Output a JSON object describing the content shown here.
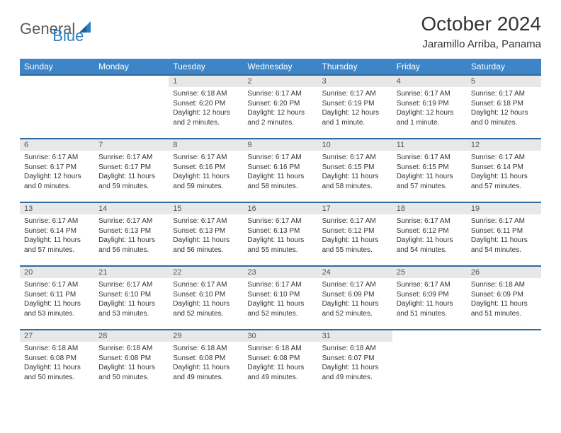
{
  "logo": {
    "text1": "General",
    "text2": "Blue"
  },
  "title": "October 2024",
  "location": "Jaramillo Arriba, Panama",
  "header_bg": "#3d85c6",
  "header_fg": "#ffffff",
  "daynum_bg": "#e8e8e8",
  "border_color": "#2f6aa0",
  "weekdays": [
    "Sunday",
    "Monday",
    "Tuesday",
    "Wednesday",
    "Thursday",
    "Friday",
    "Saturday"
  ],
  "weeks": [
    [
      {
        "empty": true
      },
      {
        "empty": true
      },
      {
        "n": "1",
        "sunrise": "Sunrise: 6:18 AM",
        "sunset": "Sunset: 6:20 PM",
        "daylight": "Daylight: 12 hours and 2 minutes."
      },
      {
        "n": "2",
        "sunrise": "Sunrise: 6:17 AM",
        "sunset": "Sunset: 6:20 PM",
        "daylight": "Daylight: 12 hours and 2 minutes."
      },
      {
        "n": "3",
        "sunrise": "Sunrise: 6:17 AM",
        "sunset": "Sunset: 6:19 PM",
        "daylight": "Daylight: 12 hours and 1 minute."
      },
      {
        "n": "4",
        "sunrise": "Sunrise: 6:17 AM",
        "sunset": "Sunset: 6:19 PM",
        "daylight": "Daylight: 12 hours and 1 minute."
      },
      {
        "n": "5",
        "sunrise": "Sunrise: 6:17 AM",
        "sunset": "Sunset: 6:18 PM",
        "daylight": "Daylight: 12 hours and 0 minutes."
      }
    ],
    [
      {
        "n": "6",
        "sunrise": "Sunrise: 6:17 AM",
        "sunset": "Sunset: 6:17 PM",
        "daylight": "Daylight: 12 hours and 0 minutes."
      },
      {
        "n": "7",
        "sunrise": "Sunrise: 6:17 AM",
        "sunset": "Sunset: 6:17 PM",
        "daylight": "Daylight: 11 hours and 59 minutes."
      },
      {
        "n": "8",
        "sunrise": "Sunrise: 6:17 AM",
        "sunset": "Sunset: 6:16 PM",
        "daylight": "Daylight: 11 hours and 59 minutes."
      },
      {
        "n": "9",
        "sunrise": "Sunrise: 6:17 AM",
        "sunset": "Sunset: 6:16 PM",
        "daylight": "Daylight: 11 hours and 58 minutes."
      },
      {
        "n": "10",
        "sunrise": "Sunrise: 6:17 AM",
        "sunset": "Sunset: 6:15 PM",
        "daylight": "Daylight: 11 hours and 58 minutes."
      },
      {
        "n": "11",
        "sunrise": "Sunrise: 6:17 AM",
        "sunset": "Sunset: 6:15 PM",
        "daylight": "Daylight: 11 hours and 57 minutes."
      },
      {
        "n": "12",
        "sunrise": "Sunrise: 6:17 AM",
        "sunset": "Sunset: 6:14 PM",
        "daylight": "Daylight: 11 hours and 57 minutes."
      }
    ],
    [
      {
        "n": "13",
        "sunrise": "Sunrise: 6:17 AM",
        "sunset": "Sunset: 6:14 PM",
        "daylight": "Daylight: 11 hours and 57 minutes."
      },
      {
        "n": "14",
        "sunrise": "Sunrise: 6:17 AM",
        "sunset": "Sunset: 6:13 PM",
        "daylight": "Daylight: 11 hours and 56 minutes."
      },
      {
        "n": "15",
        "sunrise": "Sunrise: 6:17 AM",
        "sunset": "Sunset: 6:13 PM",
        "daylight": "Daylight: 11 hours and 56 minutes."
      },
      {
        "n": "16",
        "sunrise": "Sunrise: 6:17 AM",
        "sunset": "Sunset: 6:13 PM",
        "daylight": "Daylight: 11 hours and 55 minutes."
      },
      {
        "n": "17",
        "sunrise": "Sunrise: 6:17 AM",
        "sunset": "Sunset: 6:12 PM",
        "daylight": "Daylight: 11 hours and 55 minutes."
      },
      {
        "n": "18",
        "sunrise": "Sunrise: 6:17 AM",
        "sunset": "Sunset: 6:12 PM",
        "daylight": "Daylight: 11 hours and 54 minutes."
      },
      {
        "n": "19",
        "sunrise": "Sunrise: 6:17 AM",
        "sunset": "Sunset: 6:11 PM",
        "daylight": "Daylight: 11 hours and 54 minutes."
      }
    ],
    [
      {
        "n": "20",
        "sunrise": "Sunrise: 6:17 AM",
        "sunset": "Sunset: 6:11 PM",
        "daylight": "Daylight: 11 hours and 53 minutes."
      },
      {
        "n": "21",
        "sunrise": "Sunrise: 6:17 AM",
        "sunset": "Sunset: 6:10 PM",
        "daylight": "Daylight: 11 hours and 53 minutes."
      },
      {
        "n": "22",
        "sunrise": "Sunrise: 6:17 AM",
        "sunset": "Sunset: 6:10 PM",
        "daylight": "Daylight: 11 hours and 52 minutes."
      },
      {
        "n": "23",
        "sunrise": "Sunrise: 6:17 AM",
        "sunset": "Sunset: 6:10 PM",
        "daylight": "Daylight: 11 hours and 52 minutes."
      },
      {
        "n": "24",
        "sunrise": "Sunrise: 6:17 AM",
        "sunset": "Sunset: 6:09 PM",
        "daylight": "Daylight: 11 hours and 52 minutes."
      },
      {
        "n": "25",
        "sunrise": "Sunrise: 6:17 AM",
        "sunset": "Sunset: 6:09 PM",
        "daylight": "Daylight: 11 hours and 51 minutes."
      },
      {
        "n": "26",
        "sunrise": "Sunrise: 6:18 AM",
        "sunset": "Sunset: 6:09 PM",
        "daylight": "Daylight: 11 hours and 51 minutes."
      }
    ],
    [
      {
        "n": "27",
        "sunrise": "Sunrise: 6:18 AM",
        "sunset": "Sunset: 6:08 PM",
        "daylight": "Daylight: 11 hours and 50 minutes."
      },
      {
        "n": "28",
        "sunrise": "Sunrise: 6:18 AM",
        "sunset": "Sunset: 6:08 PM",
        "daylight": "Daylight: 11 hours and 50 minutes."
      },
      {
        "n": "29",
        "sunrise": "Sunrise: 6:18 AM",
        "sunset": "Sunset: 6:08 PM",
        "daylight": "Daylight: 11 hours and 49 minutes."
      },
      {
        "n": "30",
        "sunrise": "Sunrise: 6:18 AM",
        "sunset": "Sunset: 6:08 PM",
        "daylight": "Daylight: 11 hours and 49 minutes."
      },
      {
        "n": "31",
        "sunrise": "Sunrise: 6:18 AM",
        "sunset": "Sunset: 6:07 PM",
        "daylight": "Daylight: 11 hours and 49 minutes."
      },
      {
        "empty": true
      },
      {
        "empty": true
      }
    ]
  ]
}
